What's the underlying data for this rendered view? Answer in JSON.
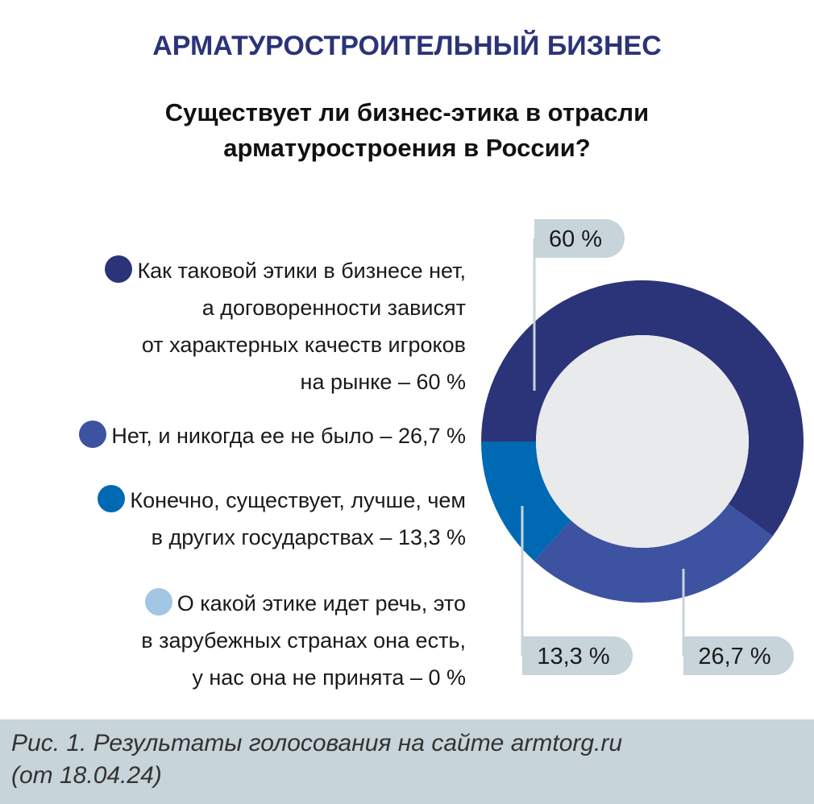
{
  "header": "АРМАТУРОСТРОИТЕЛЬНЫЙ БИЗНЕС",
  "chart_data": {
    "type": "donut",
    "title": "Существует ли бизнес-этика в отрасли\nарматуростроения в России?",
    "categories": [
      "Как таковой этики в бизнесе нет,\nа договоренности зависят\nот характерных качеств игроков\nна рынке – 60 %",
      "Нет, и никогда ее не было – 26,7 %",
      "Конечно, существует, лучше, чем\nв других государствах – 13,3 %",
      "О какой этике идет речь, это\nв зарубежных странах она есть,\nу нас она не принята – 0 %"
    ],
    "values": [
      60,
      26.7,
      13.3,
      0
    ],
    "value_labels": [
      "60 %",
      "26,7 %",
      "13,3 %",
      null
    ],
    "colors": [
      "#2b3479",
      "#3d52a1",
      "#0069b4",
      "#a2c6e4"
    ]
  },
  "caption": "Рис. 1. Результаты голосования на сайте armtorg.ru\n(от 18.04.24)"
}
